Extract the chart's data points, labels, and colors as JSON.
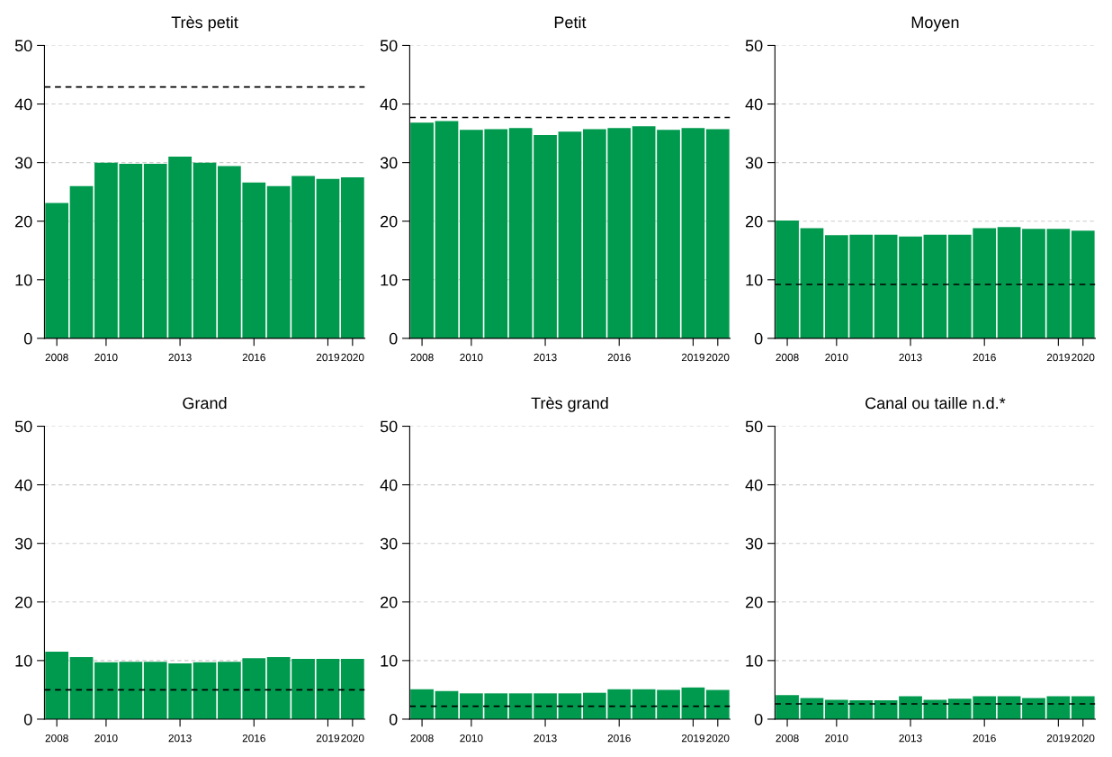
{
  "chart_data": [
    {
      "type": "bar",
      "title": "Très petit",
      "categories": [
        "2008",
        null,
        "2010",
        null,
        null,
        "2013",
        null,
        null,
        "2016",
        null,
        null,
        "2019",
        "2020"
      ],
      "values": [
        23.1,
        26.0,
        30.0,
        29.8,
        29.8,
        31.0,
        30.0,
        29.4,
        26.6,
        26.0,
        27.7,
        27.2,
        27.5
      ],
      "color": "#009a4e",
      "ylim": [
        0,
        50
      ],
      "yticks": [
        0,
        10,
        20,
        30,
        40,
        50
      ],
      "grid": "y",
      "ref_lines": [
        {
          "axis": "y",
          "value": 42.9,
          "color": "#000000",
          "line_style": "dashed"
        }
      ]
    },
    {
      "type": "bar",
      "title": "Petit",
      "categories": [
        "2008",
        null,
        "2010",
        null,
        null,
        "2013",
        null,
        null,
        "2016",
        null,
        null,
        "2019",
        "2020"
      ],
      "values": [
        36.8,
        37.1,
        35.6,
        35.7,
        35.9,
        34.7,
        35.3,
        35.7,
        35.9,
        36.2,
        35.6,
        35.9,
        35.7
      ],
      "color": "#009a4e",
      "ylim": [
        0,
        50
      ],
      "yticks": [
        0,
        10,
        20,
        30,
        40,
        50
      ],
      "grid": "y",
      "ref_lines": [
        {
          "axis": "y",
          "value": 37.7,
          "color": "#000000",
          "line_style": "dashed"
        }
      ]
    },
    {
      "type": "bar",
      "title": "Moyen",
      "categories": [
        "2008",
        null,
        "2010",
        null,
        null,
        "2013",
        null,
        null,
        "2016",
        null,
        null,
        "2019",
        "2020"
      ],
      "values": [
        20.1,
        18.8,
        17.6,
        17.7,
        17.7,
        17.4,
        17.7,
        17.7,
        18.8,
        19.0,
        18.7,
        18.7,
        18.4
      ],
      "color": "#009a4e",
      "ylim": [
        0,
        50
      ],
      "yticks": [
        0,
        10,
        20,
        30,
        40,
        50
      ],
      "grid": "y",
      "ref_lines": [
        {
          "axis": "y",
          "value": 9.2,
          "color": "#000000",
          "line_style": "dashed"
        }
      ]
    },
    {
      "type": "bar",
      "title": "Grand",
      "categories": [
        "2008",
        null,
        "2010",
        null,
        null,
        "2013",
        null,
        null,
        "2016",
        null,
        null,
        "2019",
        "2020"
      ],
      "values": [
        11.5,
        10.6,
        9.7,
        9.8,
        9.8,
        9.5,
        9.7,
        9.8,
        10.4,
        10.6,
        10.3,
        10.3,
        10.3
      ],
      "color": "#009a4e",
      "ylim": [
        0,
        50
      ],
      "yticks": [
        0,
        10,
        20,
        30,
        40,
        50
      ],
      "grid": "y",
      "ref_lines": [
        {
          "axis": "y",
          "value": 5.0,
          "color": "#000000",
          "line_style": "dashed"
        }
      ]
    },
    {
      "type": "bar",
      "title": "Très grand",
      "categories": [
        "2008",
        null,
        "2010",
        null,
        null,
        "2013",
        null,
        null,
        "2016",
        null,
        null,
        "2019",
        "2020"
      ],
      "values": [
        5.1,
        4.8,
        4.4,
        4.4,
        4.4,
        4.4,
        4.4,
        4.5,
        5.1,
        5.1,
        5.0,
        5.4,
        5.0
      ],
      "color": "#009a4e",
      "ylim": [
        0,
        50
      ],
      "yticks": [
        0,
        10,
        20,
        30,
        40,
        50
      ],
      "grid": "y",
      "ref_lines": [
        {
          "axis": "y",
          "value": 2.2,
          "color": "#000000",
          "line_style": "dashed"
        }
      ]
    },
    {
      "type": "bar",
      "title": "Canal ou taille n.d.*",
      "categories": [
        "2008",
        null,
        "2010",
        null,
        null,
        "2013",
        null,
        null,
        "2016",
        null,
        null,
        "2019",
        "2020"
      ],
      "values": [
        4.1,
        3.6,
        3.3,
        3.2,
        3.2,
        3.9,
        3.3,
        3.5,
        3.9,
        3.9,
        3.6,
        3.9,
        3.9
      ],
      "color": "#009a4e",
      "ylim": [
        0,
        50
      ],
      "yticks": [
        0,
        10,
        20,
        30,
        40,
        50
      ],
      "grid": "y",
      "ref_lines": [
        {
          "axis": "y",
          "value": 2.6,
          "color": "#000000",
          "line_style": "dashed"
        }
      ]
    }
  ]
}
